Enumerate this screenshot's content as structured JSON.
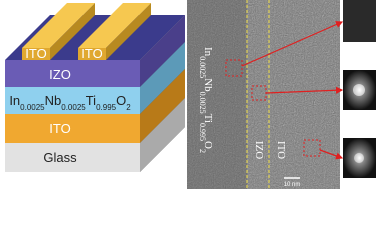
{
  "schematic": {
    "electrodes": [
      "ITO",
      "ITO"
    ],
    "layers": {
      "top": "IZO",
      "active": {
        "parts": [
          "In",
          "0.0025",
          "Nb",
          "0.0025",
          "Ti",
          "0.995",
          "O",
          "2"
        ]
      },
      "bottom_electrode": "ITO",
      "substrate": "Glass"
    }
  },
  "tem": {
    "regions": {
      "active": {
        "parts": [
          "In",
          "0.0025",
          "Nb",
          "0.0025",
          "Ti",
          "0.995",
          "O",
          "2"
        ]
      },
      "izo": "IZO",
      "ito": "ITO"
    },
    "scale_bar": "10 nm"
  }
}
